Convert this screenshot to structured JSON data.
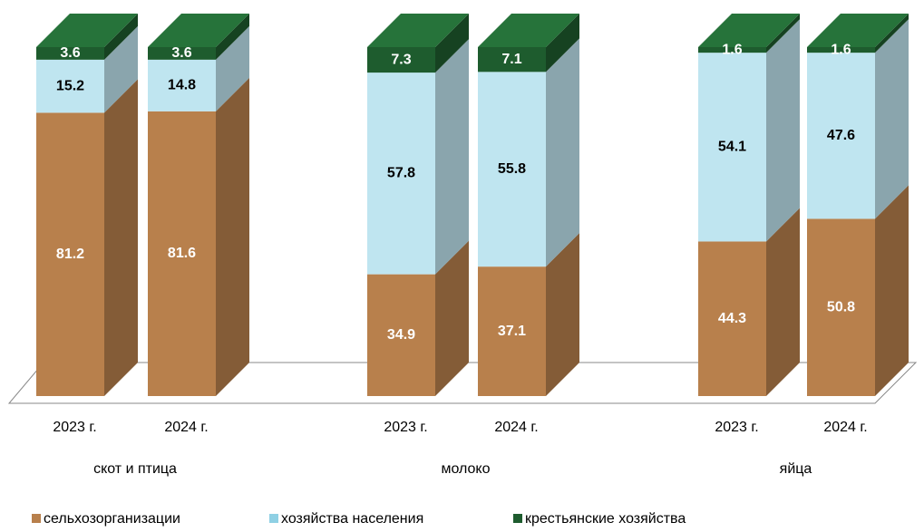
{
  "chart_data": {
    "type": "stacked-bar-3d",
    "groups": [
      "скот и птица",
      "молоко",
      "яйца"
    ],
    "categories": [
      "2023 г.",
      "2024 г.",
      "2023 г.",
      "2024 г.",
      "2023 г.",
      "2024 г."
    ],
    "series": [
      {
        "name": "сельхозорганизации",
        "color": "#b8804c",
        "values": [
          81.2,
          81.6,
          34.9,
          37.1,
          44.3,
          50.8
        ]
      },
      {
        "name": "хозяйства населения",
        "color": "#bfe5f0",
        "values": [
          15.2,
          14.8,
          57.8,
          55.8,
          54.1,
          47.6
        ]
      },
      {
        "name": "крестьянские хозяйства",
        "color": "#1e5c2e",
        "values": [
          3.6,
          3.6,
          7.3,
          7.1,
          1.6,
          1.6
        ]
      }
    ]
  }
}
